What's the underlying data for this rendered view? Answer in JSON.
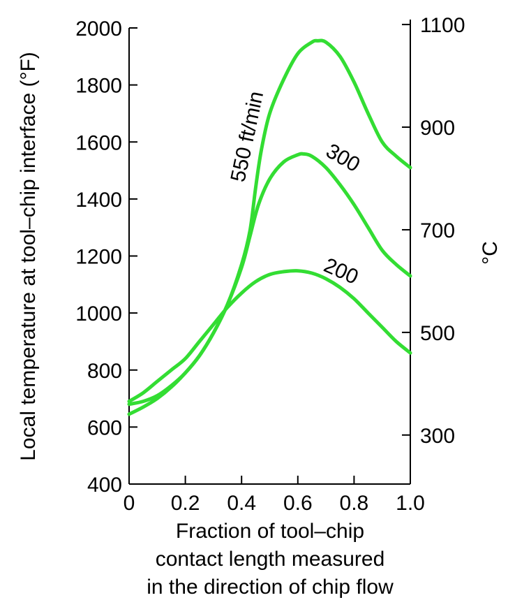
{
  "chart_data": {
    "type": "line",
    "title": "",
    "xlabel_lines": [
      "Fraction of tool–chip",
      "contact length measured",
      "in the direction of chip flow"
    ],
    "ylabel": "Local temperature at tool–chip interface (°F)",
    "y2label": "°C",
    "xlim": [
      0,
      1.0
    ],
    "ylim": [
      400,
      2000
    ],
    "x_ticks": [
      0,
      0.2,
      0.4,
      0.6,
      0.8,
      1.0
    ],
    "x_tick_labels": [
      "0",
      "0.2",
      "0.4",
      "0.6",
      "0.8",
      "1.0"
    ],
    "y_ticks": [
      400,
      600,
      800,
      1000,
      1200,
      1400,
      1600,
      1800,
      2000
    ],
    "y_tick_labels": [
      "400",
      "600",
      "800",
      "1000",
      "1200",
      "1400",
      "1600",
      "1800",
      "2000"
    ],
    "y2_ticks": [
      300,
      500,
      700,
      900,
      1100
    ],
    "y2_tick_labels": [
      "300",
      "500",
      "700",
      "900",
      "1100"
    ],
    "y2_to_y_fahrenheit": true,
    "line_color": "#33dd33",
    "grid": false,
    "series": [
      {
        "name": "550 ft/min",
        "x": [
          0,
          0.05,
          0.1,
          0.15,
          0.2,
          0.25,
          0.3,
          0.35,
          0.4,
          0.43,
          0.45,
          0.47,
          0.5,
          0.55,
          0.6,
          0.65,
          0.67,
          0.7,
          0.75,
          0.8,
          0.85,
          0.9,
          0.95,
          1.0
        ],
        "y": [
          645,
          670,
          700,
          740,
          790,
          850,
          930,
          1030,
          1170,
          1290,
          1440,
          1570,
          1700,
          1820,
          1910,
          1950,
          1955,
          1950,
          1900,
          1810,
          1700,
          1600,
          1550,
          1510
        ]
      },
      {
        "name": "300",
        "x": [
          0,
          0.05,
          0.1,
          0.15,
          0.2,
          0.25,
          0.3,
          0.35,
          0.4,
          0.43,
          0.46,
          0.5,
          0.55,
          0.6,
          0.62,
          0.65,
          0.7,
          0.75,
          0.8,
          0.85,
          0.9,
          0.95,
          1.0
        ],
        "y": [
          680,
          690,
          710,
          745,
          790,
          850,
          930,
          1030,
          1160,
          1270,
          1380,
          1470,
          1530,
          1555,
          1558,
          1550,
          1510,
          1450,
          1380,
          1300,
          1220,
          1170,
          1130
        ]
      },
      {
        "name": "200",
        "x": [
          0,
          0.05,
          0.1,
          0.15,
          0.2,
          0.25,
          0.3,
          0.35,
          0.4,
          0.45,
          0.5,
          0.55,
          0.6,
          0.65,
          0.7,
          0.75,
          0.8,
          0.85,
          0.9,
          0.95,
          1.0
        ],
        "y": [
          690,
          720,
          760,
          800,
          840,
          900,
          960,
          1020,
          1070,
          1110,
          1135,
          1145,
          1148,
          1140,
          1120,
          1090,
          1050,
          1000,
          950,
          900,
          860
        ]
      }
    ],
    "series_labels": [
      {
        "series": "550 ft/min",
        "text": "550 ft/min"
      },
      {
        "series": "300",
        "text": "300"
      },
      {
        "series": "200",
        "text": "200"
      }
    ]
  }
}
